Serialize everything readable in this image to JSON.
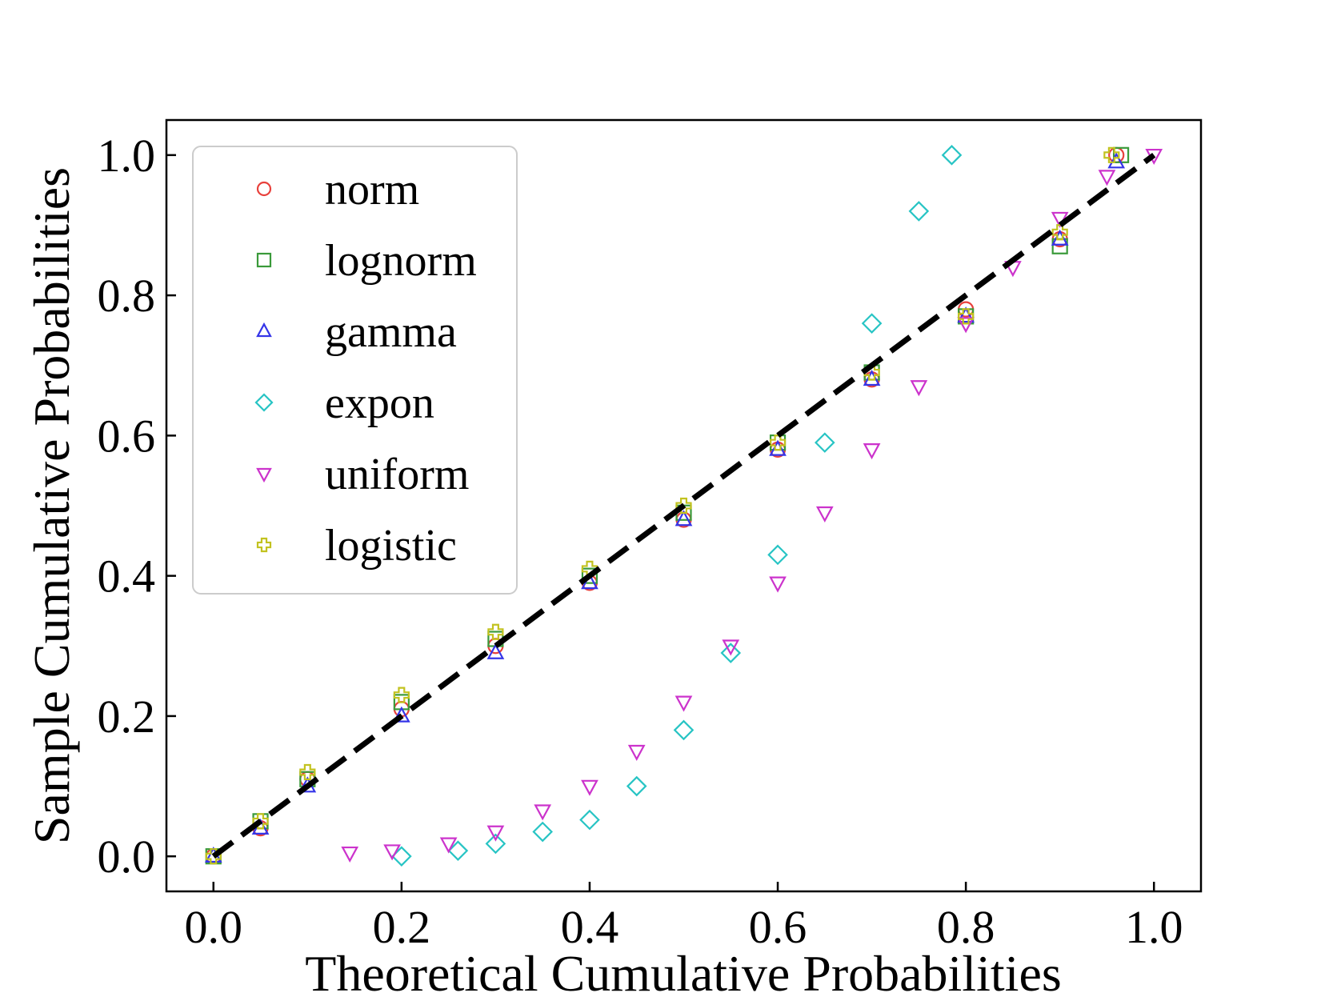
{
  "chart_data": {
    "type": "scatter",
    "title": "",
    "xlabel": "Theoretical Cumulative Probabilities",
    "ylabel": "Sample Cumulative Probabilities",
    "xlim": [
      -0.05,
      1.05
    ],
    "ylim": [
      -0.05,
      1.05
    ],
    "x_ticks": [
      0.0,
      0.2,
      0.4,
      0.6,
      0.8,
      1.0
    ],
    "y_ticks": [
      0.0,
      0.2,
      0.4,
      0.6,
      0.8,
      1.0
    ],
    "x_tick_labels": [
      "0.0",
      "0.2",
      "0.4",
      "0.6",
      "0.8",
      "1.0"
    ],
    "y_tick_labels": [
      "0.0",
      "0.2",
      "0.4",
      "0.6",
      "0.8",
      "1.0"
    ],
    "grid": false,
    "legend_position": "upper-left",
    "reference_line": {
      "style": "dashed",
      "color": "#000000",
      "x": [
        0.0,
        1.0
      ],
      "y": [
        0.0,
        1.0
      ]
    },
    "series": [
      {
        "name": "norm",
        "marker": "circle",
        "color": "#e8413c",
        "x": [
          0.0,
          0.05,
          0.1,
          0.2,
          0.3,
          0.4,
          0.5,
          0.6,
          0.7,
          0.8,
          0.9,
          0.96
        ],
        "y": [
          0.0,
          0.04,
          0.11,
          0.21,
          0.3,
          0.39,
          0.48,
          0.58,
          0.68,
          0.78,
          0.88,
          1.0
        ]
      },
      {
        "name": "lognorm",
        "marker": "square",
        "color": "#3a9a3a",
        "x": [
          0.0,
          0.05,
          0.1,
          0.2,
          0.3,
          0.4,
          0.5,
          0.6,
          0.7,
          0.8,
          0.9,
          0.965
        ],
        "y": [
          0.0,
          0.05,
          0.11,
          0.22,
          0.31,
          0.4,
          0.49,
          0.59,
          0.69,
          0.77,
          0.87,
          1.0
        ]
      },
      {
        "name": "gamma",
        "marker": "triangle-up",
        "color": "#3535e8",
        "x": [
          0.0,
          0.05,
          0.1,
          0.2,
          0.3,
          0.4,
          0.5,
          0.6,
          0.7,
          0.8,
          0.9,
          0.96
        ],
        "y": [
          0.0,
          0.04,
          0.1,
          0.2,
          0.29,
          0.39,
          0.48,
          0.58,
          0.68,
          0.77,
          0.88,
          0.99
        ]
      },
      {
        "name": "expon",
        "marker": "diamond",
        "color": "#27c4c4",
        "x": [
          0.2,
          0.26,
          0.3,
          0.35,
          0.4,
          0.45,
          0.5,
          0.55,
          0.6,
          0.65,
          0.7,
          0.75,
          0.785
        ],
        "y": [
          0.0,
          0.008,
          0.018,
          0.035,
          0.052,
          0.1,
          0.18,
          0.29,
          0.43,
          0.59,
          0.76,
          0.92,
          1.0
        ]
      },
      {
        "name": "uniform",
        "marker": "triangle-down",
        "color": "#cc33cc",
        "x": [
          0.145,
          0.19,
          0.25,
          0.3,
          0.35,
          0.4,
          0.45,
          0.5,
          0.55,
          0.6,
          0.65,
          0.7,
          0.75,
          0.8,
          0.85,
          0.9,
          0.95,
          1.0
        ],
        "y": [
          0.005,
          0.008,
          0.018,
          0.035,
          0.065,
          0.1,
          0.15,
          0.22,
          0.3,
          0.39,
          0.49,
          0.58,
          0.67,
          0.76,
          0.84,
          0.91,
          0.97,
          1.0
        ]
      },
      {
        "name": "logistic",
        "marker": "plus",
        "color": "#c2c21f",
        "x": [
          0.0,
          0.05,
          0.1,
          0.2,
          0.3,
          0.4,
          0.5,
          0.6,
          0.7,
          0.8,
          0.9,
          0.955
        ],
        "y": [
          0.0,
          0.05,
          0.12,
          0.23,
          0.32,
          0.41,
          0.5,
          0.59,
          0.69,
          0.77,
          0.89,
          1.0
        ]
      }
    ]
  }
}
